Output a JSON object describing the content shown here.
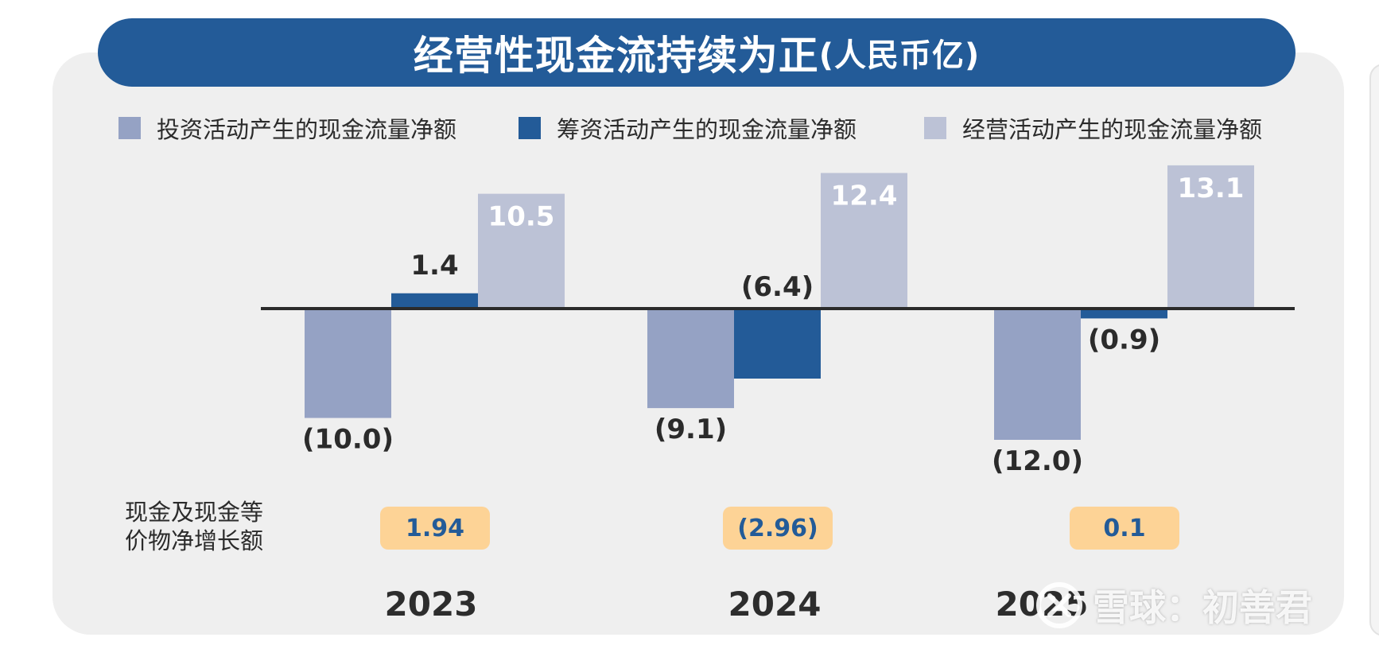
{
  "title": {
    "main": "经营性现金流持续为正",
    "unit": "(人民币亿)"
  },
  "legend": [
    {
      "label": "投资活动产生的现金流量净额",
      "color": "#95a2c4"
    },
    {
      "label": "筹资活动产生的现金流量净额",
      "color": "#235b98"
    },
    {
      "label": "经营活动产生的现金流量净额",
      "color": "#bcc2d6"
    }
  ],
  "chart_data": {
    "type": "bar",
    "title": "经营性现金流持续为正(人民币亿)",
    "categories": [
      "2023",
      "2024",
      "2025"
    ],
    "series": [
      {
        "name": "投资活动产生的现金流量净额",
        "values": [
          -10.0,
          -9.1,
          -12.0
        ],
        "labels": [
          "(10.0)",
          "(9.1)",
          "(12.0)"
        ],
        "color": "#95a2c4"
      },
      {
        "name": "筹资活动产生的现金流量净额",
        "values": [
          1.4,
          -6.4,
          -0.9
        ],
        "labels": [
          "1.4",
          "(6.4)",
          "(0.9)"
        ],
        "color": "#235b98"
      },
      {
        "name": "经营活动产生的现金流量净额",
        "values": [
          10.5,
          12.4,
          13.1
        ],
        "labels": [
          "10.5",
          "12.4",
          "13.1"
        ],
        "color": "#bcc2d6"
      }
    ],
    "xlabel": "",
    "ylabel": "",
    "ylim": [
      -12,
      13.1
    ],
    "grid": false,
    "legend_position": "top"
  },
  "net_change": {
    "label_line1": "现金及现金等",
    "label_line2": "价物净增长额",
    "values": [
      "1.94",
      "(2.96)",
      "0.1"
    ]
  },
  "colors": {
    "title_bg": "#235b98",
    "pill_bg": "#fdd396",
    "panel_bg": "#efefef",
    "axis": "#2b2b2b"
  },
  "watermark": {
    "text": "雪球：初善君",
    "icon": "snowball-logo-icon"
  }
}
